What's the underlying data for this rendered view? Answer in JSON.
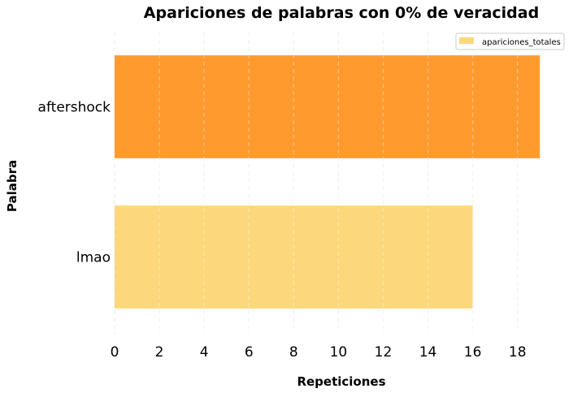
{
  "chart_data": {
    "type": "bar",
    "orientation": "horizontal",
    "title": "Apariciones de palabras con 0% de veracidad",
    "xlabel": "Repeticiones",
    "ylabel": "Palabra",
    "categories": [
      "aftershock",
      "lmao"
    ],
    "series": [
      {
        "name": "apariciones_totales",
        "values": [
          19,
          16
        ]
      }
    ],
    "bar_colors": [
      "#FF9A2F",
      "#FDD77C"
    ],
    "legend_color": "#FDD77C",
    "xlim": [
      0,
      19.3
    ],
    "xticks": [
      0,
      2,
      4,
      6,
      8,
      10,
      12,
      14,
      16,
      18
    ],
    "grid": true,
    "grid_axis": "x",
    "grid_style": "dashed",
    "legend_position": "top-right"
  }
}
